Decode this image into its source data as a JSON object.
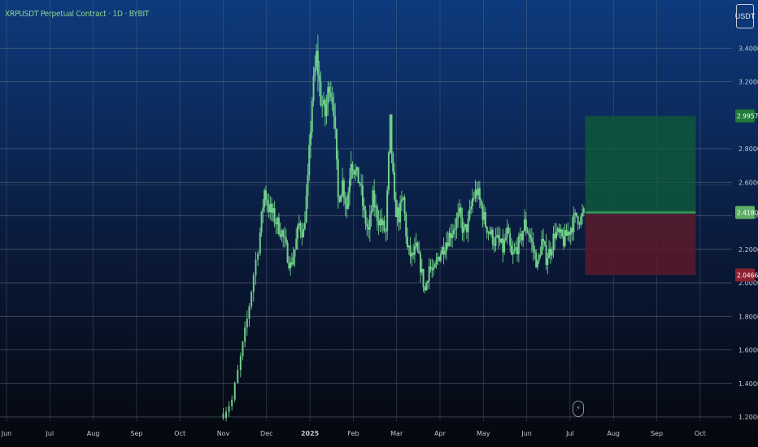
{
  "header": {
    "title": "XRPUSDT Perpetual Contract · 1D · BYBIT",
    "unit_label": "USDT"
  },
  "icons": {
    "bolt": "lightning-bolt-icon"
  },
  "colors": {
    "background_top": "#0d3a7d",
    "background_bottom": "#05070c",
    "candle": "#6fcf8a",
    "grid": "#6c7587",
    "target_zone": "#0f5a3a",
    "stop_zone": "#5a1a2c",
    "target_label": "#1f7a3a",
    "stop_label": "#8a2030",
    "entry_label": "#5fae66"
  },
  "chart_data": {
    "type": "candlestick",
    "title": "XRPUSDT Perpetual Contract · 1D · BYBIT",
    "xlabel": "",
    "ylabel": "USDT",
    "grid": true,
    "ylim": [
      1.2,
      3.6
    ],
    "x_ticks": [
      "Jun",
      "Jul",
      "Aug",
      "Sep",
      "Oct",
      "Nov",
      "Dec",
      "2025",
      "Feb",
      "Mar",
      "Apr",
      "May",
      "Jun",
      "Jul",
      "Aug",
      "Sep",
      "Oct"
    ],
    "y_ticks": [
      "1.2000",
      "1.4000",
      "1.6000",
      "1.8000",
      "2.0000",
      "2.2000",
      "2.4000",
      "2.6000",
      "2.8000",
      "3.2000",
      "3.4000"
    ],
    "price_labels": {
      "target": "2.9957",
      "current": "2.4180",
      "stop": "2.0466"
    },
    "position": {
      "entry": 2.42,
      "target": 2.9957,
      "stop": 2.0466,
      "start_month": 13.35,
      "end_month": 15.9
    },
    "series": [
      {
        "x": [
          5.0,
          5.2,
          5.4,
          5.55,
          5.7,
          5.85,
          5.95,
          6.05,
          6.15,
          6.25,
          6.35,
          6.45,
          6.55,
          6.65,
          6.75,
          6.85,
          6.95,
          7.05,
          7.15,
          7.25,
          7.35,
          7.45,
          7.55,
          7.65,
          7.75,
          7.85,
          7.95,
          8.05,
          8.15,
          8.25,
          8.35,
          8.45,
          8.55,
          8.65,
          8.75,
          8.85,
          8.95,
          9.05,
          9.15,
          9.25,
          9.35,
          9.45,
          9.55,
          9.65,
          9.75,
          9.85,
          9.95,
          10.05,
          10.15,
          10.25,
          10.35,
          10.45,
          10.55,
          10.65,
          10.75,
          10.85,
          10.95,
          11.05,
          11.15,
          11.25,
          11.35,
          11.45,
          11.55,
          11.65,
          11.75,
          11.85,
          11.95,
          12.05,
          12.15,
          12.25,
          12.35,
          12.45,
          12.55,
          12.65,
          12.75,
          12.85,
          12.95,
          13.05,
          13.15,
          13.25,
          13.35
        ],
        "close": [
          1.22,
          1.3,
          1.55,
          1.78,
          2.05,
          2.3,
          2.55,
          2.45,
          2.4,
          2.35,
          2.3,
          2.2,
          2.1,
          2.2,
          2.35,
          2.3,
          2.6,
          3.1,
          3.35,
          3.1,
          3.0,
          3.2,
          3.05,
          2.5,
          2.6,
          2.45,
          2.75,
          2.65,
          2.6,
          2.4,
          2.3,
          2.5,
          2.4,
          2.35,
          2.3,
          2.95,
          2.45,
          2.4,
          2.5,
          2.2,
          2.15,
          2.2,
          2.1,
          1.95,
          2.1,
          2.05,
          2.15,
          2.2,
          2.25,
          2.3,
          2.35,
          2.4,
          2.3,
          2.35,
          2.5,
          2.55,
          2.45,
          2.35,
          2.3,
          2.25,
          2.25,
          2.2,
          2.3,
          2.15,
          2.2,
          2.25,
          2.35,
          2.3,
          2.2,
          2.1,
          2.25,
          2.15,
          2.2,
          2.3,
          2.28,
          2.25,
          2.3,
          2.35,
          2.4,
          2.38,
          2.42
        ]
      }
    ]
  }
}
